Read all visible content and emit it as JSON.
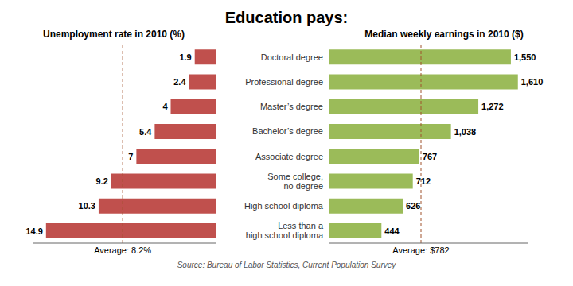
{
  "title": "Education pays:",
  "chart_data": [
    {
      "type": "bar",
      "orientation": "horizontal",
      "subtitle": "Unemployment rate in 2010 (%)",
      "categories": [
        "Doctoral degree",
        "Professional degree",
        "Master’s degree",
        "Bachelor’s degree",
        "Associate degree",
        "Some college,\nno degree",
        "High school diploma",
        "Less than a\nhigh school diploma"
      ],
      "values": [
        1.9,
        2.4,
        4.0,
        5.4,
        7.0,
        9.2,
        10.3,
        14.9
      ],
      "color": "#C0504D",
      "xlim": [
        16,
        0
      ],
      "tick_labels": false,
      "data_labels": true,
      "annotations": [
        {
          "text": "Average: 8.2%",
          "x": 8.2,
          "color": "#A0522D"
        }
      ]
    },
    {
      "type": "bar",
      "orientation": "horizontal",
      "subtitle": "Median weekly earnings in 2010 ($)",
      "categories": [
        "Doctoral degree",
        "Professional degree",
        "Master’s degree",
        "Bachelor’s degree",
        "Associate degree",
        "Some college,\nno degree",
        "High school diploma",
        "Less than a\nhigh school diploma"
      ],
      "values": [
        1550,
        1610,
        1272,
        1038,
        767,
        712,
        626,
        444
      ],
      "value_labels": [
        "1,550",
        "1,610",
        "1,272",
        "1,038",
        "767",
        "712",
        "626",
        "444"
      ],
      "color": "#9BBB59",
      "xlim": [
        0,
        1700
      ],
      "tick_labels": "y",
      "data_labels": true,
      "annotations": [
        {
          "text": "Average: $782",
          "x": 782,
          "color": "#A0522D"
        }
      ]
    }
  ],
  "annotations": [
    "Source: Bureau of Labor Statistics, Current Population Survey"
  ]
}
